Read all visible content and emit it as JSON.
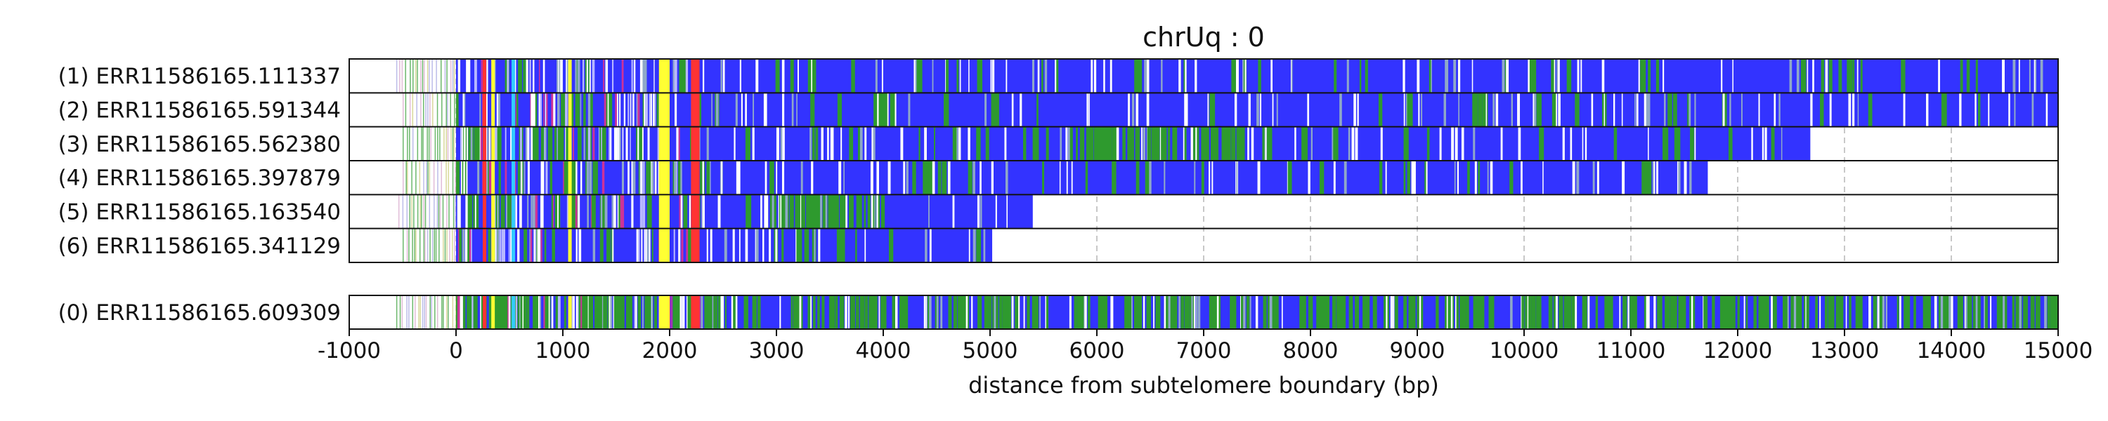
{
  "chart_data": {
    "type": "bar",
    "title": "chrUq : 0",
    "xlabel": "distance from subtelomere boundary (bp)",
    "ylabel": "",
    "xlim": [
      -1000,
      15000
    ],
    "xticks": [
      "-1000",
      "0",
      "1000",
      "2000",
      "3000",
      "4000",
      "5000",
      "6000",
      "7000",
      "8000",
      "9000",
      "10000",
      "11000",
      "12000",
      "13000",
      "14000",
      "15000"
    ],
    "grid": "vertical dashed at x ticks",
    "colors": {
      "main": "#3333ff",
      "secondary": "#2e9a2e",
      "highlight": "#ffff33",
      "marker": "#ff3333",
      "pale": "#ffffff",
      "grid": "#c8c8c8"
    },
    "reads": [
      {
        "label": "(1) ERR11586165.111337",
        "start": -560,
        "end": 15000
      },
      {
        "label": "(2) ERR11586165.591344",
        "start": -500,
        "end": 15000
      },
      {
        "label": "(3) ERR11586165.562380",
        "start": -500,
        "end": 12680
      },
      {
        "label": "(4) ERR11586165.397879",
        "start": -500,
        "end": 11720
      },
      {
        "label": "(5) ERR11586165.163540",
        "start": -540,
        "end": 5400
      },
      {
        "label": "(6) ERR11586165.341129",
        "start": -500,
        "end": 5020
      }
    ],
    "reference": {
      "label": "(0) ERR11586165.609309",
      "start": -560,
      "end": 15000
    }
  }
}
